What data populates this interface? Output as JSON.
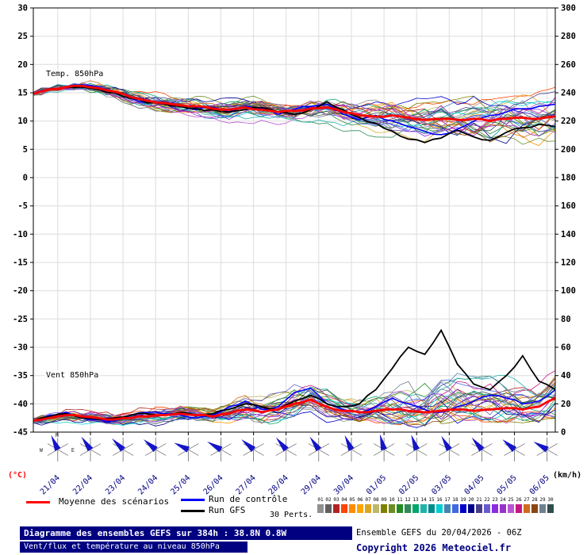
{
  "chart_data": {
    "type": "line",
    "title": "Diagramme des ensembles GEFS sur 384h : 38.8N 0.8W",
    "subtitle": "Vent/flux et température au niveau 850hPa",
    "hours_step": 12,
    "hours_max": 384,
    "left_axis": {
      "label": "(°C)",
      "min": -45,
      "max": 30,
      "step": 5
    },
    "right_axis": {
      "label": "(km/h)",
      "min": 0,
      "max": 300,
      "step": 20
    },
    "day_ticks": {
      "hours": [
        18,
        42,
        66,
        90,
        114,
        138,
        162,
        186,
        210,
        234,
        258,
        282,
        306,
        330,
        354,
        378
      ],
      "labels": [
        "21/04",
        "22/04",
        "23/04",
        "24/04",
        "25/04",
        "26/04",
        "27/04",
        "28/04",
        "29/04",
        "30/04",
        "01/05",
        "02/05",
        "03/05",
        "04/05",
        "05/05",
        "06/05"
      ]
    },
    "temp": {
      "label": "Temp. 850hPa",
      "mean": [
        14.8,
        15.6,
        16.0,
        16.2,
        15.8,
        15.2,
        14.2,
        13.6,
        13.2,
        12.8,
        12.6,
        12.2,
        12.0,
        12.4,
        12.0,
        11.6,
        11.8,
        12.2,
        12.4,
        11.6,
        11.0,
        10.8,
        11.0,
        10.6,
        10.2,
        10.4,
        10.2,
        10.4,
        10.0,
        10.4,
        10.6,
        10.4,
        10.8
      ],
      "control": [
        14.8,
        15.7,
        16.1,
        16.4,
        16.0,
        15.0,
        14.0,
        13.2,
        13.4,
        12.6,
        12.0,
        12.4,
        11.6,
        12.6,
        12.2,
        11.2,
        12.0,
        12.6,
        13.0,
        11.2,
        10.2,
        11.0,
        10.0,
        9.0,
        8.2,
        7.6,
        8.6,
        10.0,
        11.0,
        11.6,
        12.2,
        12.6,
        13.0
      ],
      "gfs": [
        14.8,
        15.5,
        16.0,
        16.0,
        15.6,
        15.0,
        14.0,
        13.2,
        13.0,
        12.6,
        12.2,
        12.0,
        11.6,
        12.0,
        12.4,
        11.6,
        11.2,
        12.0,
        13.4,
        12.0,
        10.6,
        9.6,
        8.2,
        6.8,
        6.2,
        7.0,
        8.4,
        7.2,
        6.6,
        8.0,
        8.8,
        9.4,
        9.0
      ],
      "env_min": [
        14.5,
        15.0,
        15.4,
        15.0,
        14.4,
        13.6,
        12.2,
        11.6,
        11.0,
        10.6,
        10.2,
        10.0,
        9.6,
        9.6,
        9.0,
        8.6,
        8.6,
        9.0,
        9.0,
        8.0,
        7.6,
        7.0,
        7.0,
        6.6,
        6.0,
        5.6,
        5.2,
        5.0,
        5.0,
        5.4,
        5.6,
        5.6,
        6.0
      ],
      "env_max": [
        15.2,
        16.0,
        16.5,
        17.0,
        17.0,
        16.6,
        16.0,
        15.4,
        15.0,
        14.6,
        14.4,
        14.0,
        14.4,
        14.6,
        14.0,
        14.0,
        14.0,
        14.6,
        15.0,
        14.4,
        14.0,
        14.0,
        14.4,
        14.0,
        14.0,
        14.4,
        14.0,
        14.6,
        15.0,
        16.0,
        16.6,
        17.0,
        18.0
      ]
    },
    "wind": {
      "label": "Vent 850hPa",
      "mean": [
        8,
        10,
        12,
        11,
        10,
        9,
        10,
        11,
        12,
        13,
        12,
        11,
        13,
        16,
        14,
        16,
        20,
        23,
        18,
        15,
        14,
        15,
        16,
        15,
        14,
        15,
        16,
        15,
        16,
        17,
        16,
        18,
        24
      ],
      "control": [
        8,
        12,
        14,
        10,
        9,
        8,
        12,
        14,
        13,
        12,
        10,
        12,
        18,
        22,
        16,
        18,
        28,
        31,
        20,
        16,
        14,
        18,
        24,
        20,
        16,
        14,
        18,
        22,
        26,
        24,
        20,
        22,
        30
      ],
      "gfs": [
        8,
        11,
        13,
        10,
        9,
        10,
        12,
        13,
        12,
        14,
        12,
        13,
        16,
        20,
        18,
        16,
        22,
        26,
        20,
        18,
        20,
        30,
        45,
        60,
        55,
        72,
        48,
        34,
        30,
        40,
        54,
        36,
        30
      ],
      "env_min": [
        4,
        5,
        6,
        5,
        4,
        4,
        5,
        5,
        5,
        5,
        4,
        4,
        5,
        6,
        5,
        5,
        8,
        8,
        6,
        5,
        4,
        5,
        5,
        4,
        4,
        5,
        5,
        5,
        5,
        6,
        6,
        6,
        8
      ],
      "env_max": [
        12,
        15,
        18,
        16,
        14,
        13,
        16,
        18,
        20,
        22,
        18,
        16,
        25,
        30,
        28,
        30,
        38,
        42,
        35,
        28,
        26,
        35,
        45,
        55,
        62,
        78,
        60,
        46,
        40,
        50,
        56,
        46,
        55
      ]
    },
    "members_count": 30,
    "member_colors": [
      "#909090",
      "#606060",
      "#b22222",
      "#ff4500",
      "#ff8c00",
      "#ffa500",
      "#daa520",
      "#bdb76b",
      "#808000",
      "#6b8e23",
      "#228b22",
      "#2e8b57",
      "#00a86b",
      "#20b2aa",
      "#008b8b",
      "#00ced1",
      "#4682b4",
      "#4169e1",
      "#0000cd",
      "#00008b",
      "#483d8b",
      "#6a5acd",
      "#8a2be2",
      "#9932cc",
      "#ba55d3",
      "#c71585",
      "#d2691e",
      "#8b4513",
      "#708090",
      "#2f4f4f"
    ],
    "series_colors": {
      "mean": "#ff0000",
      "control": "#0000ff",
      "gfs": "#000000"
    },
    "wind_barbs": {
      "directions": [
        205,
        215,
        225,
        230,
        245,
        240,
        230,
        220,
        215,
        205,
        195,
        200,
        210,
        220,
        230,
        240
      ]
    },
    "compass": {
      "n": "N",
      "w": "W",
      "e": "E"
    }
  },
  "legend": {
    "mean_label": "Moyenne des scénarios",
    "control_label": "Run de contrôle",
    "gfs_label": "Run GFS",
    "perts_label": "30 Perts.",
    "pert_numbers": [
      "01",
      "02",
      "03",
      "04",
      "05",
      "06",
      "07",
      "08",
      "09",
      "10",
      "11",
      "12",
      "13",
      "14",
      "15",
      "16",
      "17",
      "18",
      "19",
      "20",
      "21",
      "22",
      "23",
      "24",
      "25",
      "26",
      "27",
      "28",
      "29",
      "30"
    ]
  },
  "footer": {
    "line1": "Diagramme des ensembles GEFS sur 384h : 38.8N 0.8W",
    "line2": "Vent/flux et température au niveau 850hPa",
    "run_info": "Ensemble GEFS du 20/04/2026 - 06Z",
    "copyright": "Copyright 2026 Meteociel.fr"
  },
  "units": {
    "left": "(°C)",
    "right": "(km/h)"
  }
}
